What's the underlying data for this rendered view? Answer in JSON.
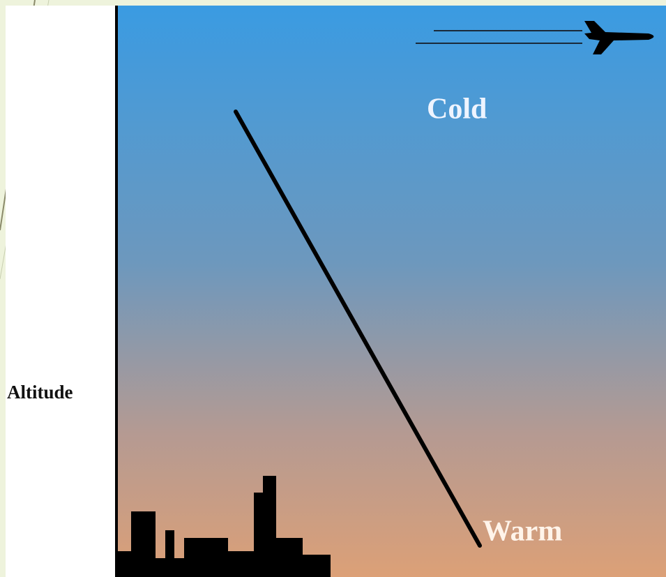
{
  "diagram": {
    "axis_label": "Altitude",
    "top_label": "Cold",
    "bottom_label": "Warm"
  }
}
